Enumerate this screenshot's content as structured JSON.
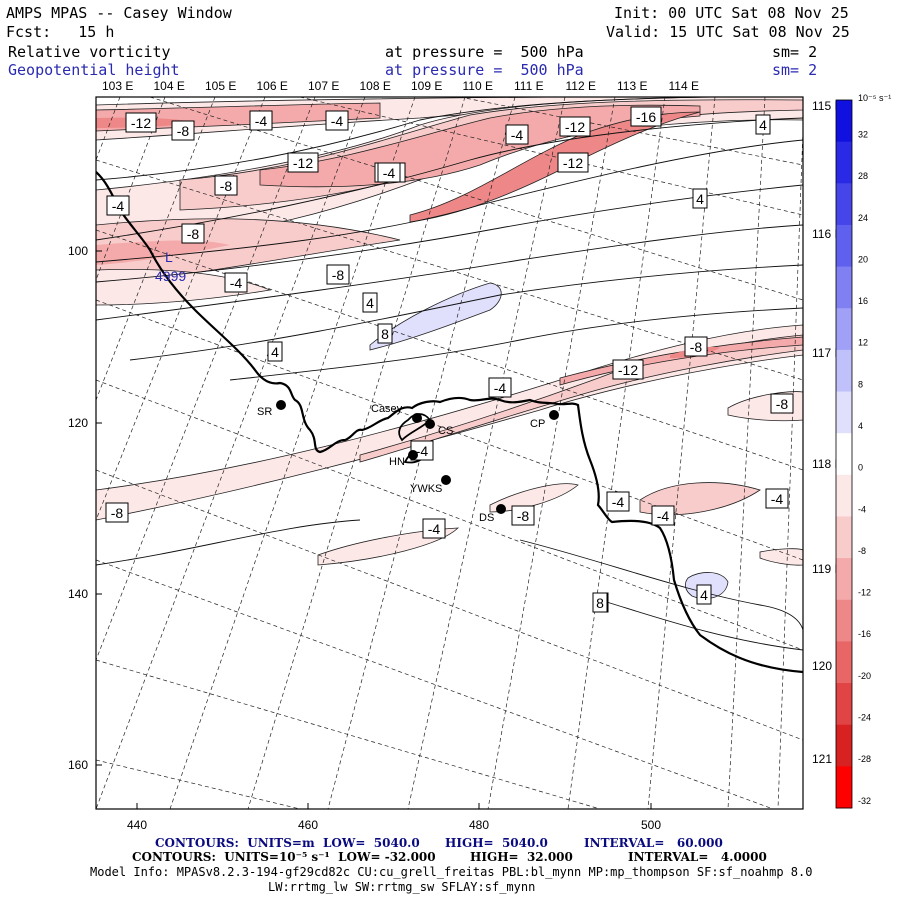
{
  "header": {
    "title": "AMPS MPAS -- Casey Window",
    "fcst": "Fcst:   15 h",
    "init": "Init: 00 UTC Sat 08 Nov 25",
    "valid": "Valid: 15 UTC Sat 08 Nov 25",
    "field1": "Relative vorticity",
    "field1_level": "at pressure =  500 hPa",
    "field1_sm": "sm= 2",
    "field2": "Geopotential height",
    "field2_level": "at pressure =  500 hPa",
    "field2_sm": "sm= 2"
  },
  "map": {
    "lon_labels_top": [
      "103 E",
      "104 E",
      "105 E",
      "106 E",
      "107 E",
      "108 E",
      "109 E",
      "110 E",
      "111 E",
      "112 E",
      "113 E",
      "114 E"
    ],
    "lon_labels_right": [
      "115 E",
      "116 E",
      "117 E",
      "118 E",
      "119 E",
      "120 E",
      "121 E"
    ],
    "y_axis_ticks": [
      "100",
      "120",
      "140",
      "160"
    ],
    "x_axis_ticks": [
      "440",
      "460",
      "480",
      "500"
    ],
    "height_label": "4999",
    "stations": [
      {
        "name": "SR"
      },
      {
        "name": "Casey"
      },
      {
        "name": "CS"
      },
      {
        "name": "HN"
      },
      {
        "name": "YWKS"
      },
      {
        "name": "DS"
      },
      {
        "name": "CP"
      }
    ],
    "contour_labels": [
      "-12",
      "-8",
      "-4",
      "-4",
      "-8",
      "-12",
      "-8",
      "-12",
      "-12",
      "-16",
      "-4",
      "-12",
      "-4",
      "-8",
      "-4",
      "-8",
      "-4",
      "4",
      "4",
      "8",
      "4",
      "4",
      "4",
      "-4",
      "-12",
      "-8",
      "-8",
      "-4",
      "-4",
      "-4",
      "-8",
      "-4",
      "-4",
      "4",
      "8"
    ]
  },
  "colorbar": {
    "units": "10⁻⁵ s⁻¹",
    "labels": [
      "32",
      "28",
      "24",
      "20",
      "16",
      "12",
      "8",
      "4",
      "0",
      "-4",
      "-8",
      "-12",
      "-16",
      "-20",
      "-24",
      "-28",
      "-32"
    ],
    "colors": [
      "#1010e0",
      "#2a2ae6",
      "#4545ea",
      "#6060ee",
      "#8080f2",
      "#a0a0f6",
      "#c0c0fa",
      "#e0e0fd",
      "#ffffff",
      "#fde8e8",
      "#f9cccc",
      "#f4aaaa",
      "#ee8888",
      "#e86666",
      "#e04444",
      "#d82222",
      "#ff0000"
    ]
  },
  "footer": {
    "line1_left": "CONTOURS:  UNITS=m  LOW=  5040.0",
    "line1_mid": "HIGH=  5040.0",
    "line1_right": "INTERVAL=   60.000",
    "line2_left": "CONTOURS:  UNITS=10⁻⁵ s⁻¹  LOW= -32.000",
    "line2_mid": "HIGH=  32.000",
    "line2_right": "INTERVAL=   4.0000",
    "model_info": "Model Info: MPASv8.2.3-194-gf29cd82c CU:cu_grell_freitas PBL:bl_mynn MP:mp_thompson SF:sf_noahmp 8.0",
    "model_info2": "LW:rrtmg_lw SW:rrtmg_sw SFLAY:sf_mynn"
  }
}
